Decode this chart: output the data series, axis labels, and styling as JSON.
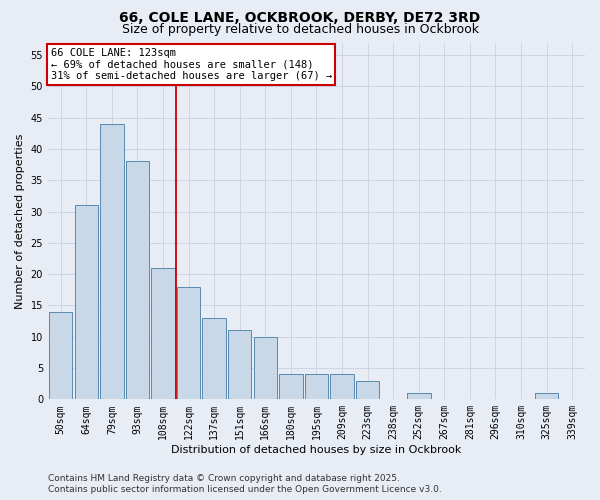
{
  "title": "66, COLE LANE, OCKBROOK, DERBY, DE72 3RD",
  "subtitle": "Size of property relative to detached houses in Ockbrook",
  "xlabel": "Distribution of detached houses by size in Ockbrook",
  "ylabel": "Number of detached properties",
  "categories": [
    "50sqm",
    "64sqm",
    "79sqm",
    "93sqm",
    "108sqm",
    "122sqm",
    "137sqm",
    "151sqm",
    "166sqm",
    "180sqm",
    "195sqm",
    "209sqm",
    "223sqm",
    "238sqm",
    "252sqm",
    "267sqm",
    "281sqm",
    "296sqm",
    "310sqm",
    "325sqm",
    "339sqm"
  ],
  "values": [
    14,
    31,
    44,
    38,
    21,
    18,
    13,
    11,
    10,
    4,
    4,
    4,
    3,
    0,
    1,
    0,
    0,
    0,
    0,
    1,
    0
  ],
  "bar_color": "#c8d8e8",
  "bar_edgecolor": "#5a8ab0",
  "vline_x": 4.5,
  "vline_color": "#cc0000",
  "annotation_text": "66 COLE LANE: 123sqm\n← 69% of detached houses are smaller (148)\n31% of semi-detached houses are larger (67) →",
  "annotation_box_color": "#ffffff",
  "annotation_box_edgecolor": "#cc0000",
  "ylim": [
    0,
    57
  ],
  "yticks": [
    0,
    5,
    10,
    15,
    20,
    25,
    30,
    35,
    40,
    45,
    50,
    55
  ],
  "grid_color": "#c8d0e0",
  "background_color": "#e8edf5",
  "footer_line1": "Contains HM Land Registry data © Crown copyright and database right 2025.",
  "footer_line2": "Contains public sector information licensed under the Open Government Licence v3.0.",
  "title_fontsize": 10,
  "subtitle_fontsize": 9,
  "axis_label_fontsize": 8,
  "tick_fontsize": 7,
  "annotation_fontsize": 7.5,
  "footer_fontsize": 6.5
}
